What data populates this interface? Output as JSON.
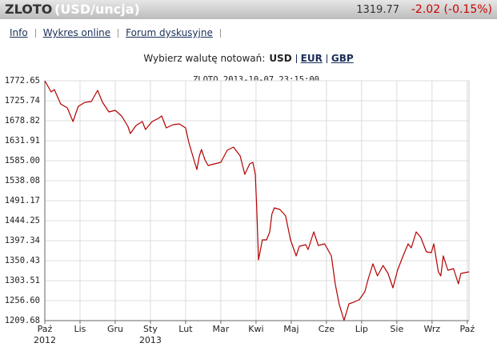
{
  "header": {
    "name": "ZLOTO",
    "unit": "(USD/uncja)",
    "price": "1319.77",
    "change": "-2.02 (-0.15%)"
  },
  "nav": [
    "Info",
    "Wykres online",
    "Forum dyskusyjne"
  ],
  "currency": {
    "label": "Wybierz walutę notowań:",
    "options": [
      "USD",
      "EUR",
      "GBP"
    ]
  },
  "chart_data": {
    "type": "line",
    "title": "ZLOTO 2013-10-07 23:15:00",
    "x": [
      0,
      0.18,
      0.27,
      0.45,
      0.64,
      0.8,
      0.95,
      1.14,
      1.32,
      1.5,
      1.64,
      1.82,
      2.0,
      2.18,
      2.36,
      2.43,
      2.59,
      2.77,
      2.86,
      3.05,
      3.23,
      3.32,
      3.45,
      3.64,
      3.82,
      4.0,
      4.09,
      4.25,
      4.32,
      4.39,
      4.45,
      4.55,
      4.64,
      4.82,
      5.0,
      5.18,
      5.36,
      5.55,
      5.68,
      5.82,
      5.91,
      5.98,
      6.02,
      6.07,
      6.18,
      6.3,
      6.39,
      6.45,
      6.52,
      6.68,
      6.84,
      6.98,
      7.14,
      7.23,
      7.41,
      7.48,
      7.64,
      7.77,
      7.95,
      8.14,
      8.25,
      8.36,
      8.5,
      8.64,
      8.77,
      8.93,
      9.09,
      9.18,
      9.32,
      9.45,
      9.61,
      9.75,
      9.89,
      10.02,
      10.16,
      10.32,
      10.41,
      10.55,
      10.68,
      10.84,
      10.98,
      11.05,
      11.18,
      11.25,
      11.32,
      11.45,
      11.61,
      11.75,
      11.82,
      12.05
    ],
    "series": [
      {
        "name": "ZLOTO",
        "color": "#b40000",
        "values": [
          1772.65,
          1746.38,
          1752.01,
          1718.23,
          1708.85,
          1676.94,
          1712.6,
          1721.98,
          1723.86,
          1750.13,
          1721.98,
          1699.46,
          1703.22,
          1690.08,
          1665.68,
          1648.79,
          1667.56,
          1676.94,
          1658.18,
          1676.94,
          1684.45,
          1690.08,
          1661.93,
          1669.44,
          1671.31,
          1661.93,
          1628.15,
          1583.11,
          1564.35,
          1596.25,
          1611.26,
          1586.87,
          1573.73,
          1577.48,
          1581.24,
          1609.39,
          1616.89,
          1596.25,
          1553.09,
          1577.48,
          1581.24,
          1553.09,
          1474.27,
          1352.29,
          1399.21,
          1399.21,
          1417.97,
          1459.26,
          1474.27,
          1470.52,
          1455.5,
          1399.21,
          1361.67,
          1384.19,
          1387.95,
          1376.69,
          1417.97,
          1386.07,
          1389.82,
          1361.67,
          1295.99,
          1249.08,
          1210.5,
          1249.08,
          1252.83,
          1258.46,
          1277.23,
          1305.38,
          1342.91,
          1314.76,
          1339.15,
          1320.39,
          1286.61,
          1327.9,
          1357.92,
          1389.82,
          1380.44,
          1417.97,
          1404.84,
          1371.06,
          1369.18,
          1389.82,
          1324.14,
          1314.76,
          1361.67,
          1327.9,
          1331.65,
          1295.99,
          1320.39,
          1324.14
        ]
      }
    ],
    "xlim": [
      0,
      12.05
    ],
    "xticks": [
      {
        "value": 0,
        "label": "Paź 2012"
      },
      {
        "value": 1,
        "label": "Lis"
      },
      {
        "value": 2,
        "label": "Gru"
      },
      {
        "value": 3,
        "label": "Sty 2013"
      },
      {
        "value": 4,
        "label": "Lut"
      },
      {
        "value": 5,
        "label": "Mar"
      },
      {
        "value": 6,
        "label": "Kwi"
      },
      {
        "value": 7,
        "label": "Maj"
      },
      {
        "value": 8,
        "label": "Cze"
      },
      {
        "value": 9,
        "label": "Lip"
      },
      {
        "value": 10,
        "label": "Sie"
      },
      {
        "value": 11,
        "label": "Wrz"
      },
      {
        "value": 12,
        "label": "Paź"
      }
    ],
    "ylim": [
      1209.68,
      1772.65
    ],
    "yticks": [
      {
        "value": 1772.65,
        "label": "1772.65"
      },
      {
        "value": 1725.74,
        "label": "1725.74"
      },
      {
        "value": 1678.82,
        "label": "1678.82"
      },
      {
        "value": 1631.91,
        "label": "1631.91"
      },
      {
        "value": 1585.0,
        "label": "1585.00"
      },
      {
        "value": 1538.08,
        "label": "1538.08"
      },
      {
        "value": 1491.17,
        "label": "1491.17"
      },
      {
        "value": 1444.25,
        "label": "1444.25"
      },
      {
        "value": 1397.34,
        "label": "1397.34"
      },
      {
        "value": 1350.43,
        "label": "1350.43"
      },
      {
        "value": 1303.51,
        "label": "1303.51"
      },
      {
        "value": 1256.6,
        "label": "1256.60"
      },
      {
        "value": 1209.68,
        "label": "1209.68"
      }
    ],
    "grid": true
  }
}
